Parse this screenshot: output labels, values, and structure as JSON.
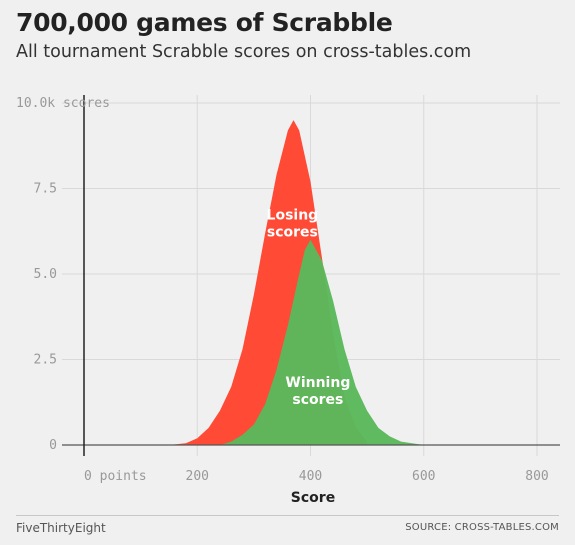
{
  "header": {
    "title": "700,000 games of Scrabble",
    "subtitle": "All tournament Scrabble scores on cross-tables.com"
  },
  "footer": {
    "brand": "FiveThirtyEight",
    "source": "SOURCE: CROSS-TABLES.COM"
  },
  "chart_data": {
    "type": "area",
    "xlabel": "Score",
    "ylabel": "",
    "xlim": [
      -30,
      820
    ],
    "ylim": [
      0,
      10.0
    ],
    "grid": true,
    "x_ticks": [
      {
        "value": 0,
        "label": "0 points"
      },
      {
        "value": 200,
        "label": "200"
      },
      {
        "value": 400,
        "label": "400"
      },
      {
        "value": 600,
        "label": "600"
      },
      {
        "value": 800,
        "label": "800"
      }
    ],
    "y_ticks": [
      {
        "value": 0,
        "label": "0"
      },
      {
        "value": 2.5,
        "label": "2.5"
      },
      {
        "value": 5.0,
        "label": "5.0"
      },
      {
        "value": 7.5,
        "label": "7.5"
      },
      {
        "value": 10.0,
        "label": "10.0k scores"
      }
    ],
    "series": [
      {
        "name": "Losing scores",
        "color": "#ff4a36",
        "x": [
          150,
          180,
          200,
          220,
          240,
          260,
          280,
          300,
          320,
          340,
          360,
          370,
          380,
          400,
          420,
          440,
          460,
          480,
          500
        ],
        "values": [
          0.0,
          0.05,
          0.2,
          0.5,
          1.0,
          1.7,
          2.8,
          4.4,
          6.2,
          7.9,
          9.2,
          9.5,
          9.2,
          7.7,
          5.5,
          3.2,
          1.4,
          0.5,
          0.1
        ]
      },
      {
        "name": "Winning scores",
        "color": "#5bb85b",
        "x": [
          240,
          260,
          280,
          300,
          320,
          340,
          360,
          380,
          390,
          400,
          420,
          440,
          460,
          480,
          500,
          520,
          540,
          560,
          600
        ],
        "values": [
          0.0,
          0.1,
          0.3,
          0.6,
          1.2,
          2.2,
          3.5,
          5.0,
          5.7,
          6.0,
          5.4,
          4.2,
          2.8,
          1.7,
          1.0,
          0.5,
          0.25,
          0.1,
          0.0
        ]
      }
    ],
    "annotations": [
      {
        "text": "Losing",
        "x": 368,
        "y": 6.6
      },
      {
        "text": "scores",
        "x": 368,
        "y": 6.1
      },
      {
        "text": "Winning",
        "x": 413,
        "y": 1.7
      },
      {
        "text": "scores",
        "x": 413,
        "y": 1.2
      }
    ]
  }
}
